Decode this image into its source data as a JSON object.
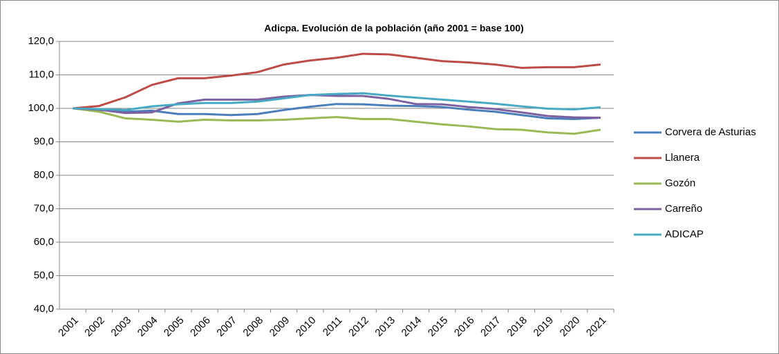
{
  "chart_data": {
    "type": "line",
    "title": "Adicpa. Evolución de la población (año 2001 = base 100)",
    "categories": [
      "2001",
      "2002",
      "2003",
      "2004",
      "2005",
      "2006",
      "2007",
      "2008",
      "2009",
      "2010",
      "2011",
      "2012",
      "2013",
      "2014",
      "2015",
      "2016",
      "2017",
      "2018",
      "2019",
      "2020",
      "2021"
    ],
    "ylim": [
      40,
      120
    ],
    "yticks": [
      {
        "value": 40,
        "label": "40,0"
      },
      {
        "value": 50,
        "label": "50,0"
      },
      {
        "value": 60,
        "label": "60,0"
      },
      {
        "value": 70,
        "label": "70,0"
      },
      {
        "value": 80,
        "label": "80,0"
      },
      {
        "value": 90,
        "label": "90,0"
      },
      {
        "value": 100,
        "label": "100,0"
      },
      {
        "value": 110,
        "label": "110,0"
      },
      {
        "value": 120,
        "label": "120,0"
      }
    ],
    "grid": true,
    "legend": "right",
    "series": [
      {
        "name": "Corvera de Asturias",
        "color": "#4a7ebb",
        "values": [
          100,
          99.5,
          99,
          99.3,
          98.3,
          98.3,
          98,
          98.3,
          99.5,
          100.5,
          101.3,
          101.2,
          100.8,
          100.7,
          100.4,
          99.6,
          99,
          98,
          97,
          96.8,
          97.2
        ]
      },
      {
        "name": "Llanera",
        "color": "#be4b48",
        "values": [
          100,
          100.7,
          103.3,
          107,
          109,
          109,
          109.8,
          110.8,
          113.1,
          114.3,
          115.1,
          116.3,
          116.1,
          115.1,
          114.1,
          113.7,
          113.1,
          112.1,
          112.3,
          112.3,
          113.1
        ]
      },
      {
        "name": "Gozón",
        "color": "#98b954",
        "values": [
          100,
          99,
          97,
          96.6,
          96,
          96.6,
          96.4,
          96.4,
          96.6,
          97,
          97.4,
          96.8,
          96.8,
          96,
          95.2,
          94.6,
          93.8,
          93.6,
          92.8,
          92.4,
          93.6
        ]
      },
      {
        "name": "Carreño",
        "color": "#7d60a0",
        "values": [
          100,
          99.6,
          98.6,
          98.8,
          101.5,
          102.6,
          102.6,
          102.6,
          103.5,
          104,
          103.7,
          103.7,
          102.8,
          101.3,
          101.2,
          100.4,
          99.8,
          98.8,
          97.7,
          97.3,
          97.2
        ]
      },
      {
        "name": "ADICAP",
        "color": "#46aac5",
        "values": [
          100,
          99.8,
          99.5,
          100.6,
          101.2,
          101.6,
          101.6,
          102,
          103,
          104,
          104.3,
          104.5,
          103.8,
          103.2,
          102.6,
          102,
          101.4,
          100.6,
          99.9,
          99.7,
          100.3
        ]
      }
    ]
  }
}
